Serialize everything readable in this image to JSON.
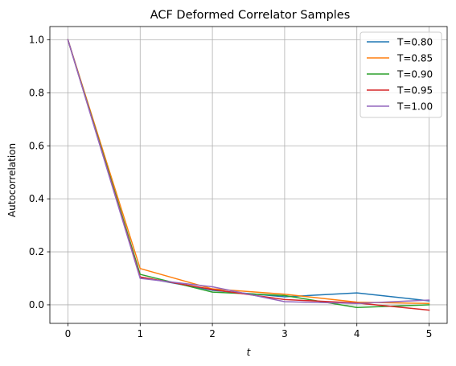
{
  "chart_data": {
    "type": "line",
    "title": "ACF Deformed Correlator Samples",
    "xlabel": "t",
    "ylabel": "Autocorrelation",
    "x": [
      0,
      1,
      2,
      3,
      4,
      5
    ],
    "xticks": [
      "0",
      "1",
      "2",
      "3",
      "4",
      "5"
    ],
    "yticks": [
      "0.0",
      "0.2",
      "0.4",
      "0.6",
      "0.8",
      "1.0"
    ],
    "xlim": [
      -0.25,
      5.25
    ],
    "ylim": [
      -0.07,
      1.05
    ],
    "grid": true,
    "legend_position": "upper right",
    "series": [
      {
        "name": "T=0.80",
        "color": "#1f77b4",
        "values": [
          1.0,
          0.105,
          0.055,
          0.03,
          0.045,
          0.015
        ]
      },
      {
        "name": "T=0.85",
        "color": "#ff7f0e",
        "values": [
          1.0,
          0.137,
          0.06,
          0.04,
          0.01,
          0.005
        ]
      },
      {
        "name": "T=0.90",
        "color": "#2ca02c",
        "values": [
          1.0,
          0.115,
          0.048,
          0.035,
          -0.01,
          0.0
        ]
      },
      {
        "name": "T=0.95",
        "color": "#d62728",
        "values": [
          1.0,
          0.105,
          0.058,
          0.02,
          0.007,
          -0.02
        ]
      },
      {
        "name": "T=1.00",
        "color": "#9467bd",
        "values": [
          1.0,
          0.1,
          0.068,
          0.012,
          0.005,
          0.018
        ]
      }
    ]
  }
}
